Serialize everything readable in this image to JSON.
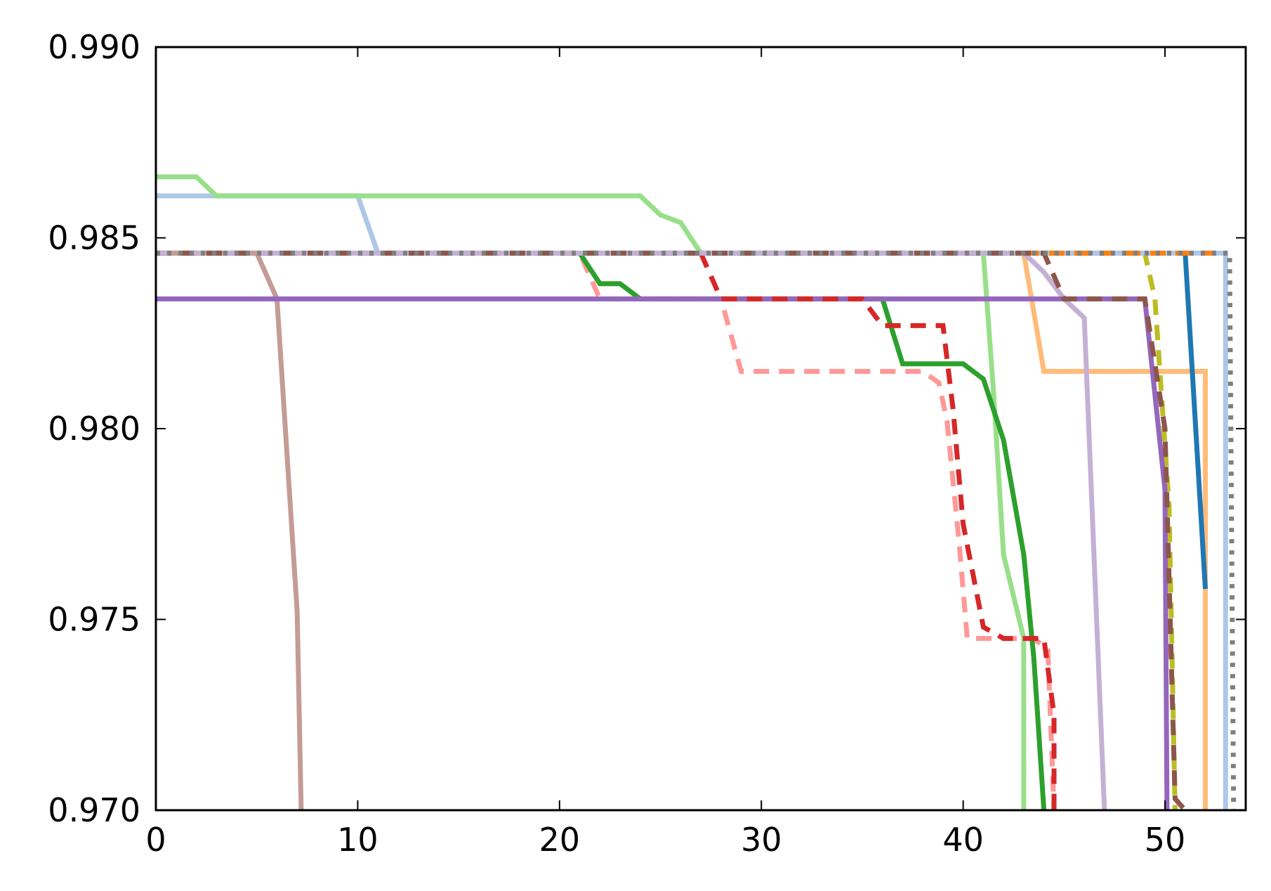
{
  "chart_data": {
    "type": "line",
    "title": "",
    "xlabel": "",
    "ylabel": "",
    "xlim": [
      0,
      54
    ],
    "ylim": [
      0.97,
      0.99
    ],
    "grid": false,
    "legend": "none",
    "x_ticks": [
      {
        "value": 0,
        "label": "0"
      },
      {
        "value": 10,
        "label": "10"
      },
      {
        "value": 20,
        "label": "20"
      },
      {
        "value": 30,
        "label": "30"
      },
      {
        "value": 40,
        "label": "40"
      },
      {
        "value": 50,
        "label": "50"
      }
    ],
    "y_ticks": [
      {
        "value": 0.97,
        "label": "0.970"
      },
      {
        "value": 0.975,
        "label": "0.975"
      },
      {
        "value": 0.98,
        "label": "0.980"
      },
      {
        "value": 0.985,
        "label": "0.985"
      },
      {
        "value": 0.99,
        "label": "0.990"
      }
    ],
    "series": [
      {
        "color": "#bcbd22",
        "dash": "dash",
        "points": [
          [
            0,
            0.9846
          ],
          [
            49,
            0.9846
          ],
          [
            49.5,
            0.9834
          ],
          [
            50.2,
            0.978
          ],
          [
            50.5,
            0.97
          ]
        ]
      },
      {
        "color": "#ff9896",
        "dash": "dash",
        "points": [
          [
            0,
            0.9846
          ],
          [
            21,
            0.9846
          ],
          [
            22,
            0.9834
          ],
          [
            27,
            0.9834
          ],
          [
            28,
            0.9834
          ],
          [
            29,
            0.9815
          ],
          [
            38,
            0.9815
          ],
          [
            38.8,
            0.9812
          ],
          [
            39.2,
            0.9802
          ],
          [
            39.8,
            0.977
          ],
          [
            40.2,
            0.9745
          ],
          [
            42.5,
            0.9745
          ],
          [
            43.5,
            0.9745
          ],
          [
            44.2,
            0.9742
          ],
          [
            44.5,
            0.97
          ]
        ]
      },
      {
        "color": "#aec7e8",
        "dash": "solid",
        "points": [
          [
            0,
            0.9861
          ],
          [
            10,
            0.9861
          ],
          [
            11,
            0.9846
          ],
          [
            53,
            0.9846
          ],
          [
            53,
            0.97
          ]
        ]
      },
      {
        "color": "#98df8a",
        "dash": "solid",
        "points": [
          [
            0,
            0.9866
          ],
          [
            2,
            0.9866
          ],
          [
            3,
            0.9861
          ],
          [
            24,
            0.9861
          ],
          [
            25,
            0.9856
          ],
          [
            26,
            0.9854
          ],
          [
            27,
            0.9846
          ],
          [
            41,
            0.9846
          ],
          [
            41.5,
            0.981
          ],
          [
            42,
            0.9767
          ],
          [
            43,
            0.9745
          ],
          [
            43,
            0.97
          ]
        ]
      },
      {
        "color": "#2ca02c",
        "dash": "solid",
        "points": [
          [
            21,
            0.9846
          ],
          [
            22,
            0.9838
          ],
          [
            23,
            0.9838
          ],
          [
            24,
            0.9834
          ],
          [
            36,
            0.9834
          ],
          [
            37,
            0.9817
          ],
          [
            40,
            0.9817
          ],
          [
            41,
            0.9813
          ],
          [
            42,
            0.9797
          ],
          [
            43,
            0.9767
          ],
          [
            43.5,
            0.974
          ],
          [
            44,
            0.97
          ]
        ]
      },
      {
        "color": "#ffbb78",
        "dash": "solid",
        "points": [
          [
            43,
            0.9846
          ],
          [
            44,
            0.9815
          ],
          [
            52,
            0.9815
          ],
          [
            52,
            0.97
          ]
        ]
      },
      {
        "color": "#1f77b4",
        "dash": "solid",
        "points": [
          [
            51,
            0.9846
          ],
          [
            52,
            0.9758
          ]
        ]
      },
      {
        "color": "#c5b0d5",
        "dash": "solid",
        "points": [
          [
            0,
            0.9846
          ],
          [
            43,
            0.9846
          ],
          [
            44,
            0.9841
          ],
          [
            45,
            0.9834
          ],
          [
            46,
            0.9829
          ],
          [
            47,
            0.97
          ]
        ]
      },
      {
        "color": "#c49c94",
        "dash": "solid",
        "points": [
          [
            0,
            0.9846
          ],
          [
            5,
            0.9846
          ],
          [
            6,
            0.9834
          ],
          [
            7,
            0.9752
          ],
          [
            7.2,
            0.97
          ]
        ]
      },
      {
        "color": "#9467bd",
        "dash": "solid",
        "points": [
          [
            0,
            0.9834
          ],
          [
            49,
            0.9834
          ],
          [
            50,
            0.9784
          ],
          [
            50.1,
            0.97
          ]
        ]
      },
      {
        "color": "#d62728",
        "dash": "dash",
        "points": [
          [
            27,
            0.9846
          ],
          [
            28,
            0.9834
          ],
          [
            35,
            0.9834
          ],
          [
            36,
            0.9827
          ],
          [
            39,
            0.9827
          ],
          [
            39.5,
            0.9805
          ],
          [
            40,
            0.9775
          ],
          [
            41,
            0.9748
          ],
          [
            42,
            0.9745
          ],
          [
            44,
            0.9745
          ],
          [
            44.5,
            0.9725
          ],
          [
            44.5,
            0.97
          ]
        ]
      },
      {
        "color": "#ff7f0e",
        "dash": "dash",
        "points": [
          [
            43,
            0.9846
          ],
          [
            52.5,
            0.9846
          ]
        ]
      },
      {
        "color": "#8c564b",
        "dash": "dash",
        "points": [
          [
            0,
            0.9846
          ],
          [
            44,
            0.9846
          ],
          [
            45,
            0.9834
          ],
          [
            49,
            0.9834
          ],
          [
            50,
            0.98
          ],
          [
            50.5,
            0.9703
          ],
          [
            51,
            0.97
          ]
        ]
      },
      {
        "color": "#c5b0d5",
        "dash": "dashdot",
        "points": [
          [
            0,
            0.9846
          ],
          [
            43,
            0.9846
          ]
        ]
      },
      {
        "color": "#7f7f7f",
        "dash": "dot",
        "points": [
          [
            0,
            0.9846
          ],
          [
            53.2,
            0.9846
          ],
          [
            53.2,
            0.9845
          ],
          [
            53.4,
            0.97
          ]
        ]
      }
    ]
  }
}
